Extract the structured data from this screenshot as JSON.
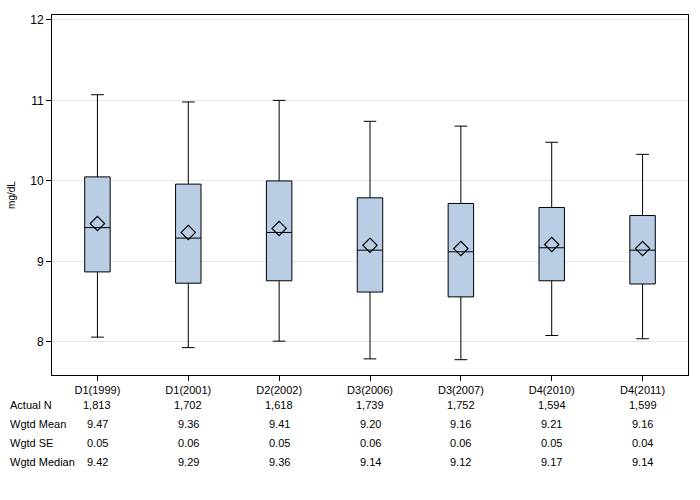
{
  "chart_data": {
    "type": "box",
    "y_label": "mg/dL",
    "categories": [
      "D1(1999)",
      "D1(2001)",
      "D2(2002)",
      "D3(2006)",
      "D3(2007)",
      "D4(2010)",
      "D4(2011)"
    ],
    "series": [
      {
        "color": "#b9cde5",
        "marker": "diamond-open",
        "whisker_low": [
          8.06,
          7.93,
          8.01,
          7.79,
          7.78,
          8.08,
          8.04
        ],
        "q1": [
          8.87,
          8.73,
          8.76,
          8.62,
          8.56,
          8.76,
          8.72
        ],
        "median": [
          9.42,
          9.29,
          9.36,
          9.14,
          9.12,
          9.17,
          9.14
        ],
        "q3": [
          10.05,
          9.96,
          10.0,
          9.79,
          9.72,
          9.67,
          9.57
        ],
        "whisker_high": [
          11.07,
          10.98,
          11.0,
          10.74,
          10.68,
          10.48,
          10.33
        ],
        "mean": [
          9.47,
          9.36,
          9.41,
          9.2,
          9.16,
          9.21,
          9.16
        ]
      }
    ],
    "ylim": [
      7.59,
      12.06
    ],
    "yticks": [
      8,
      9,
      10,
      11,
      12
    ],
    "grid": true,
    "table": {
      "rows": [
        {
          "label": "Actual N",
          "values": [
            "1,813",
            "1,702",
            "1,618",
            "1,739",
            "1,752",
            "1,594",
            "1,599"
          ]
        },
        {
          "label": "Wgtd Mean",
          "values": [
            "9.47",
            "9.36",
            "9.41",
            "9.20",
            "9.16",
            "9.21",
            "9.16"
          ]
        },
        {
          "label": "Wgtd SE",
          "values": [
            "0.05",
            "0.06",
            "0.05",
            "0.06",
            "0.06",
            "0.05",
            "0.04"
          ]
        },
        {
          "label": "Wgtd Median",
          "values": [
            "9.42",
            "9.29",
            "9.36",
            "9.14",
            "9.12",
            "9.17",
            "9.14"
          ]
        }
      ]
    }
  }
}
